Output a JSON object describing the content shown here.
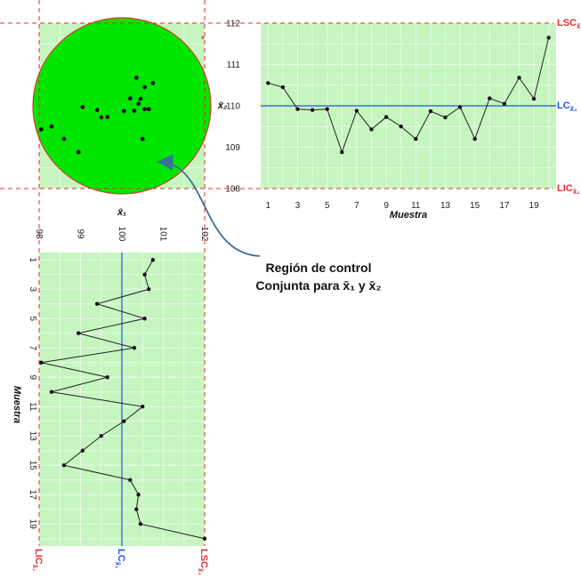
{
  "colors": {
    "control_region_fill": "#00e600",
    "control_band_fill": "#c6f5c0",
    "limit_line": "#e03030",
    "center_line": "#2255ee",
    "series_line": "#222222",
    "point": "#111111",
    "out_of_control_marker": "#e03030",
    "annotation_arrow": "#3a6f99"
  },
  "annotation": {
    "line1": "Región de control",
    "line2": "Conjunta para x̄₁ y x̄₂"
  },
  "chart_data": [
    {
      "id": "x2-control-chart",
      "type": "line",
      "xlabel": "Muestra",
      "ylabel": "x̄₂",
      "x": [
        1,
        2,
        3,
        4,
        5,
        6,
        7,
        8,
        9,
        10,
        11,
        12,
        13,
        14,
        15,
        16,
        17,
        18,
        19,
        20
      ],
      "values": [
        110.55,
        110.45,
        109.92,
        109.9,
        109.92,
        108.88,
        109.88,
        109.43,
        109.73,
        109.5,
        109.2,
        109.87,
        109.72,
        109.97,
        109.2,
        110.18,
        110.05,
        110.68,
        110.17,
        111.65
      ],
      "xticks": [
        1,
        3,
        5,
        7,
        9,
        11,
        13,
        15,
        17,
        19
      ],
      "yticks": [
        108,
        109,
        110,
        111,
        112
      ],
      "xlim": [
        0.5,
        20.5
      ],
      "ylim": [
        108,
        112
      ],
      "limits": {
        "LSC": 112,
        "LC": 110,
        "LIC": 108
      },
      "limit_labels": {
        "LSC": "LSC",
        "LC": "LC",
        "LIC": "LIC",
        "sub": "x̄₂"
      },
      "grid": true
    },
    {
      "id": "x1-control-chart",
      "type": "line",
      "orientation": "rotated",
      "xlabel": "Muestra",
      "ylabel": "x̄₁",
      "x": [
        1,
        2,
        3,
        4,
        5,
        6,
        7,
        8,
        9,
        10,
        11,
        12,
        13,
        14,
        15,
        16,
        17,
        18,
        19,
        20
      ],
      "values": [
        100.75,
        100.55,
        100.65,
        99.4,
        100.55,
        98.95,
        100.3,
        98.05,
        99.65,
        98.3,
        100.5,
        100.05,
        99.5,
        99.05,
        98.6,
        100.2,
        100.4,
        100.35,
        100.45,
        102.0
      ],
      "xticks": [
        1,
        3,
        5,
        7,
        9,
        11,
        13,
        15,
        17,
        19
      ],
      "yticks": [
        98,
        99,
        100,
        101,
        102
      ],
      "xlim": [
        0.5,
        20.5
      ],
      "ylim": [
        98,
        102
      ],
      "limits": {
        "LSC": 102,
        "LC": 100,
        "LIC": 98
      },
      "limit_labels": {
        "LSC": "LSC",
        "LC": "LC",
        "LIC": "LIC",
        "sub": "x̄₁"
      },
      "grid": true
    },
    {
      "id": "joint-scatter",
      "type": "scatter",
      "xlabel": "x̄₁",
      "ylabel": "x̄₂",
      "xlim": [
        98,
        102
      ],
      "ylim": [
        108,
        112
      ],
      "region": "ellipse",
      "points": [
        {
          "x": 100.75,
          "y": 110.55
        },
        {
          "x": 100.55,
          "y": 110.45
        },
        {
          "x": 100.65,
          "y": 109.92
        },
        {
          "x": 99.4,
          "y": 109.9
        },
        {
          "x": 100.55,
          "y": 109.92
        },
        {
          "x": 98.95,
          "y": 108.88
        },
        {
          "x": 100.3,
          "y": 109.88
        },
        {
          "x": 98.05,
          "y": 109.43
        },
        {
          "x": 99.65,
          "y": 109.73
        },
        {
          "x": 98.3,
          "y": 109.5
        },
        {
          "x": 100.5,
          "y": 109.2
        },
        {
          "x": 100.05,
          "y": 109.87
        },
        {
          "x": 99.5,
          "y": 109.72
        },
        {
          "x": 99.05,
          "y": 109.97
        },
        {
          "x": 98.6,
          "y": 109.2
        },
        {
          "x": 100.2,
          "y": 110.18
        },
        {
          "x": 100.4,
          "y": 110.05
        },
        {
          "x": 100.35,
          "y": 110.68
        },
        {
          "x": 100.45,
          "y": 110.17
        },
        {
          "x": 102.0,
          "y": 111.65
        }
      ],
      "out_of_control": [
        19
      ]
    }
  ]
}
